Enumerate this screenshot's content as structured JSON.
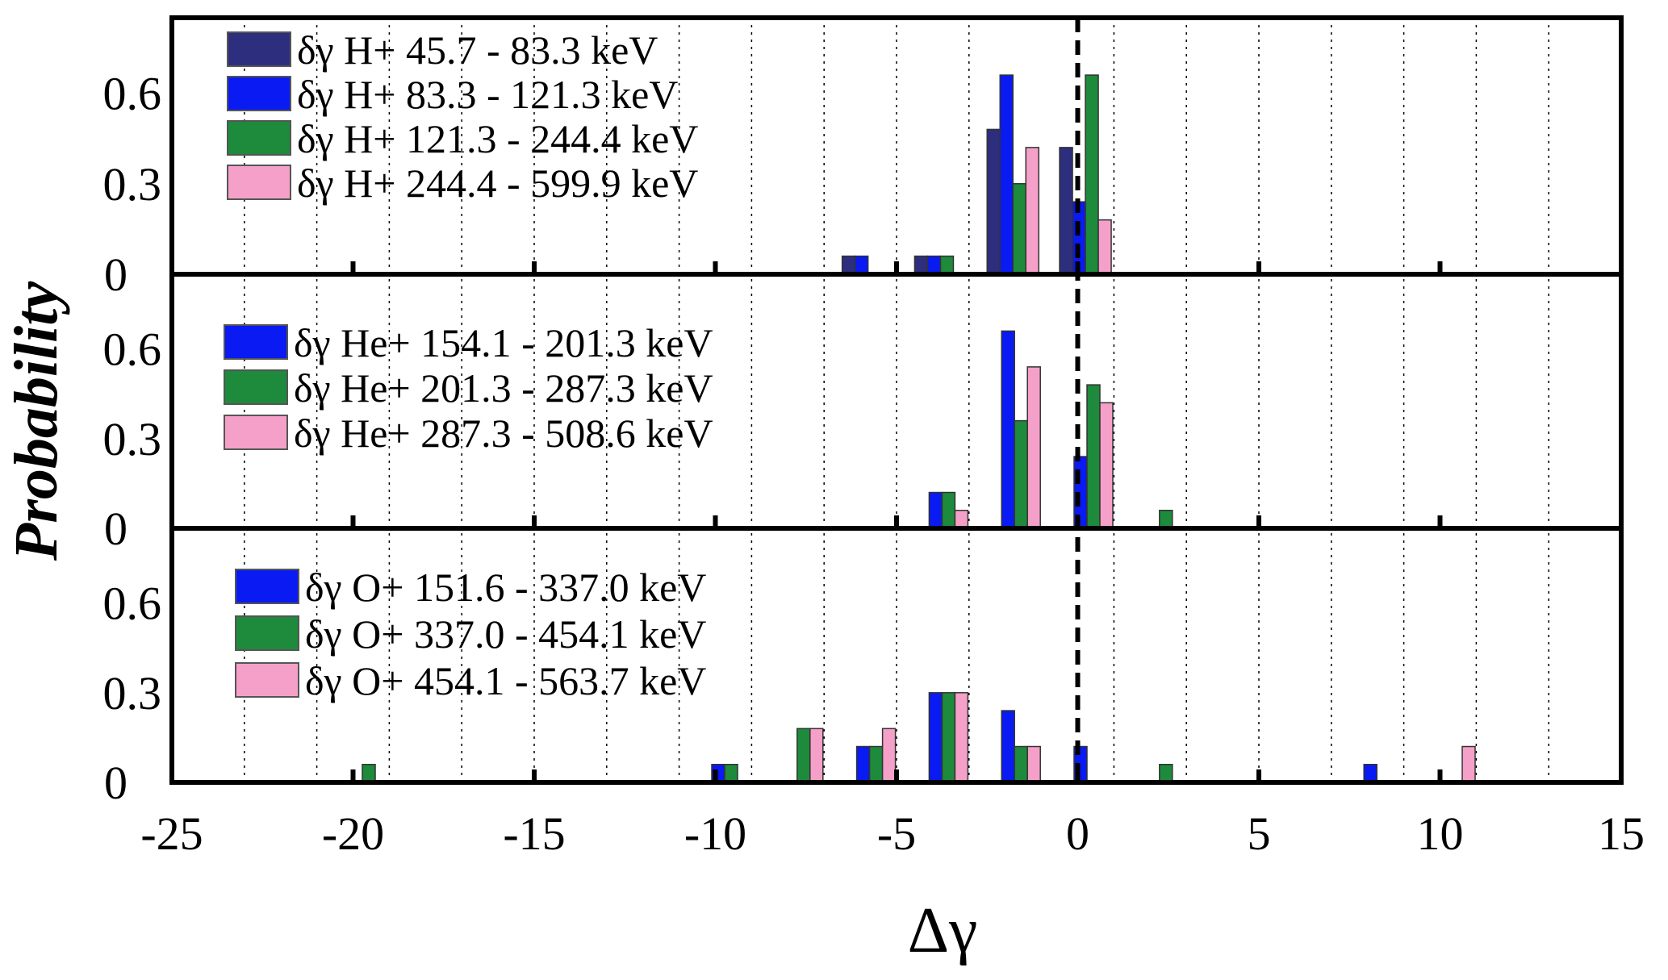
{
  "chart_data": {
    "type": "bar",
    "xlabel": "Δγ",
    "ylabel": "Probability",
    "xlim": [
      -25,
      15
    ],
    "ylim": [
      0,
      0.85
    ],
    "xticks": [
      "-25",
      "-20",
      "-15",
      "-10",
      "-5",
      "0",
      "5",
      "10",
      "15"
    ],
    "yticks": [
      "0",
      "0.3",
      "0.6"
    ],
    "vertical_reference": 0,
    "grid": "dotted vertical lines",
    "panels": [
      {
        "name": "H+",
        "series": [
          {
            "name": "δγ H+ 45.7 - 83.3 keV",
            "color": "#2e2e7e",
            "x": [
              -6.5,
              -4.5,
              -2.5,
              -0.5
            ],
            "values": [
              0.06,
              0.06,
              0.48,
              0.42
            ]
          },
          {
            "name": "δγ H+ 83.3 - 121.3 keV",
            "color": "#0a1af2",
            "x": [
              -6.5,
              -4.5,
              -2.5,
              -0.5
            ],
            "values": [
              0.06,
              0.06,
              0.66,
              0.24
            ]
          },
          {
            "name": "δγ H+ 121.3 - 244.4 keV",
            "color": "#1d8a3c",
            "x": [
              -4.5,
              -2.5,
              -0.5
            ],
            "values": [
              0.06,
              0.3,
              0.66
            ]
          },
          {
            "name": "δγ H+ 244.4 - 599.9 keV",
            "color": "#f5a0c8",
            "x": [
              -2.5,
              -0.5
            ],
            "values": [
              0.42,
              0.18
            ]
          }
        ]
      },
      {
        "name": "He+",
        "series": [
          {
            "name": "δγ He+ 154.1 - 201.3 keV",
            "color": "#0a1af2",
            "x": [
              -4.1,
              -2.1,
              -0.1
            ],
            "values": [
              0.12,
              0.66,
              0.24
            ]
          },
          {
            "name": "δγ He+ 201.3 - 287.3 keV",
            "color": "#1d8a3c",
            "x": [
              -4.1,
              -2.1,
              -0.1,
              1.9
            ],
            "values": [
              0.12,
              0.36,
              0.48,
              0.06
            ]
          },
          {
            "name": "δγ He+ 287.3 - 508.6 keV",
            "color": "#f5a0c8",
            "x": [
              -4.1,
              -2.1,
              -0.1
            ],
            "values": [
              0.06,
              0.54,
              0.42
            ]
          }
        ]
      },
      {
        "name": "O+",
        "series": [
          {
            "name": "δγ O+ 151.6 - 337.0 keV",
            "color": "#0a1af2",
            "x": [
              -20.1,
              -10.1,
              -8.1,
              -6.1,
              -4.1,
              -2.1,
              -0.1,
              1.9,
              7.9,
              9.9
            ],
            "values": [
              0,
              0.06,
              0,
              0.12,
              0.3,
              0.24,
              0.12,
              0,
              0.06,
              0
            ]
          },
          {
            "name": "δγ O+ 337.0 - 454.1 keV",
            "color": "#1d8a3c",
            "x": [
              -20.1,
              -10.1,
              -8.1,
              -6.1,
              -4.1,
              -2.1,
              -0.1,
              1.9,
              7.9,
              9.9
            ],
            "values": [
              0.06,
              0.06,
              0.18,
              0.12,
              0.3,
              0.12,
              0,
              0.06,
              0,
              0
            ]
          },
          {
            "name": "δγ O+ 454.1 - 563.7 keV",
            "color": "#f5a0c8",
            "x": [
              -20.1,
              -10.1,
              -8.1,
              -6.1,
              -4.1,
              -2.1,
              -0.1,
              1.9,
              7.9,
              9.9
            ],
            "values": [
              0,
              0,
              0.18,
              0.18,
              0.3,
              0.12,
              0,
              0,
              0,
              0.12
            ]
          }
        ]
      }
    ]
  }
}
